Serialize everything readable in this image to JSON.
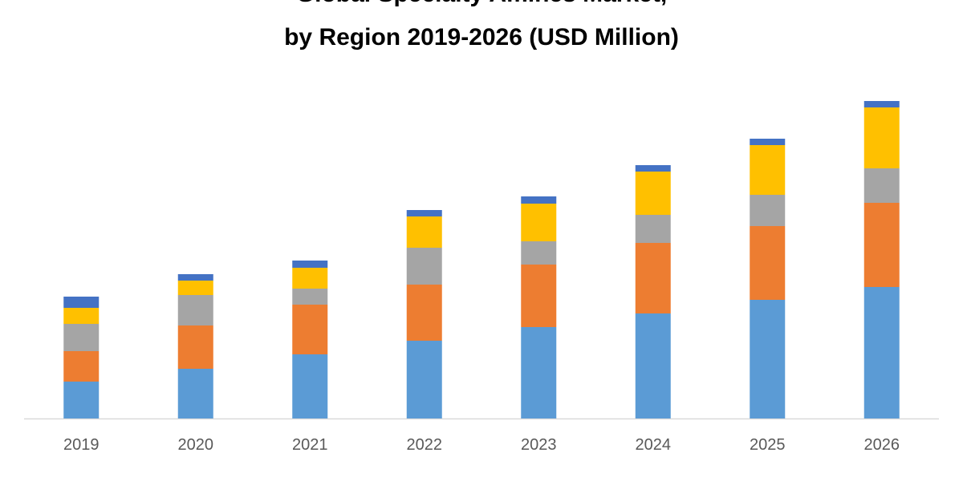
{
  "chart_data": {
    "type": "stacked-bar",
    "title": [
      "Global Specialty Amines Market,",
      "by Region 2019-2026 (USD Million)"
    ],
    "categories": [
      "2019",
      "2020",
      "2021",
      "2022",
      "2023",
      "2024",
      "2025",
      "2026"
    ],
    "series": [
      {
        "color": "#5b9bd5",
        "values": [
          46,
          62,
          80,
          97,
          114,
          131,
          148,
          164
        ]
      },
      {
        "color": "#ed7d31",
        "values": [
          38,
          54,
          62,
          70,
          78,
          88,
          92,
          105
        ]
      },
      {
        "color": "#a5a5a5",
        "values": [
          34,
          38,
          20,
          46,
          29,
          35,
          39,
          43
        ]
      },
      {
        "color": "#ffc000",
        "values": [
          20,
          18,
          26,
          39,
          47,
          54,
          62,
          76
        ]
      },
      {
        "color": "#4472c4",
        "values": [
          14,
          8,
          9,
          8,
          9,
          8,
          8,
          8
        ]
      }
    ],
    "ylim": [
      0,
      400
    ]
  }
}
